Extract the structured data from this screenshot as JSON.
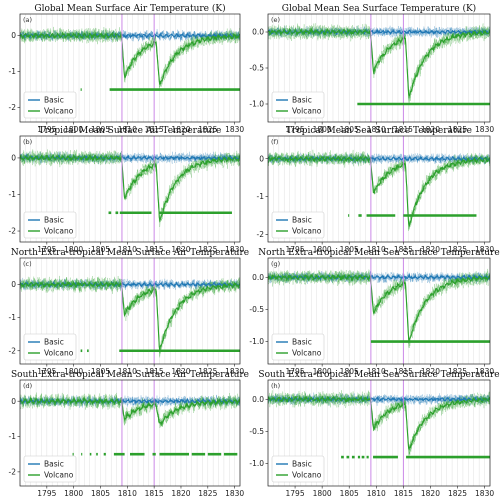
{
  "figure": {
    "colors": {
      "basic": "#1f77b4",
      "volcano": "#2ca02c",
      "vline": "#c77ee6",
      "grid": "#d9d9d9"
    },
    "eruption_years": [
      1809,
      1815
    ]
  },
  "chart_data": [
    {
      "id": "a",
      "panel_label": "(a)",
      "type": "line",
      "title": "Global Mean Surface Air Temperature (K)",
      "xlim": [
        1790,
        1831
      ],
      "ylim": [
        -2.4,
        0.6
      ],
      "yticks": [
        -2,
        -1,
        0
      ],
      "xticks": [
        1795,
        1800,
        1805,
        1810,
        1815,
        1820,
        1825,
        1830
      ],
      "legend": "bottom-left",
      "series": [
        {
          "name": "Basic",
          "color": "#1f77b4",
          "baseline": 0.0
        },
        {
          "name": "Volcano",
          "color": "#2ca02c",
          "dips": [
            {
              "year": 1809.5,
              "value": -1.15
            },
            {
              "year": 1816.0,
              "value": -1.25
            }
          ]
        }
      ],
      "significance": {
        "y": -1.5,
        "segments": [
          [
            1801.3,
            1801.5
          ],
          [
            1806.7,
            1831
          ]
        ]
      }
    },
    {
      "id": "e",
      "panel_label": "(e)",
      "type": "line",
      "title": "Global Mean Sea Surface Temperature (K)",
      "xlim": [
        1790,
        1831
      ],
      "ylim": [
        -1.25,
        0.25
      ],
      "yticks": [
        -1.0,
        -0.5,
        0.0
      ],
      "xticks": [
        1795,
        1800,
        1805,
        1810,
        1815,
        1820,
        1825,
        1830
      ],
      "legend": "bottom-left",
      "series": [
        {
          "name": "Basic",
          "color": "#1f77b4",
          "baseline": 0.0
        },
        {
          "name": "Volcano",
          "color": "#2ca02c",
          "dips": [
            {
              "year": 1809.5,
              "value": -0.55
            },
            {
              "year": 1816.0,
              "value": -0.85
            }
          ]
        }
      ],
      "significance": {
        "y": -1.0,
        "segments": [
          [
            1806.5,
            1831
          ]
        ]
      }
    },
    {
      "id": "b",
      "panel_label": "(b)",
      "type": "line",
      "title": "Tropical Mean Surface Air Temperature",
      "xlim": [
        1790,
        1831
      ],
      "ylim": [
        -2.3,
        0.6
      ],
      "yticks": [
        -2,
        -1,
        0
      ],
      "xticks": [
        1795,
        1800,
        1805,
        1810,
        1815,
        1820,
        1825,
        1830
      ],
      "legend": "bottom-left",
      "series": [
        {
          "name": "Basic",
          "color": "#1f77b4",
          "baseline": 0.0
        },
        {
          "name": "Volcano",
          "color": "#2ca02c",
          "dips": [
            {
              "year": 1809.5,
              "value": -1.1
            },
            {
              "year": 1816.0,
              "value": -1.6
            }
          ]
        }
      ],
      "significance": {
        "y": -1.5,
        "segments": [
          [
            1806.5,
            1807.0
          ],
          [
            1807.8,
            1808.3
          ],
          [
            1808.6,
            1814.5
          ],
          [
            1816.0,
            1829.5
          ]
        ]
      }
    },
    {
      "id": "f",
      "panel_label": "(f)",
      "type": "line",
      "title": "Tropical Mean Sea Surface Temperature",
      "xlim": [
        1790,
        1831
      ],
      "ylim": [
        -2.2,
        0.6
      ],
      "yticks": [
        -2,
        -1,
        0
      ],
      "xticks": [
        1795,
        1800,
        1805,
        1810,
        1815,
        1820,
        1825,
        1830
      ],
      "legend": "bottom-left",
      "series": [
        {
          "name": "Basic",
          "color": "#1f77b4",
          "baseline": 0.0
        },
        {
          "name": "Volcano",
          "color": "#2ca02c",
          "dips": [
            {
              "year": 1809.5,
              "value": -0.9
            },
            {
              "year": 1816.0,
              "value": -1.7
            }
          ]
        }
      ],
      "significance": {
        "y": -1.5,
        "segments": [
          [
            1804.8,
            1805.0
          ],
          [
            1806.7,
            1807.3
          ],
          [
            1808.2,
            1813.5
          ],
          [
            1815.0,
            1828.5
          ]
        ]
      }
    },
    {
      "id": "c",
      "panel_label": "(c)",
      "type": "line",
      "title": "North Extra-tropical Mean Surface Air Temperature",
      "xlim": [
        1790,
        1831
      ],
      "ylim": [
        -2.4,
        0.8
      ],
      "yticks": [
        -2,
        -1,
        0
      ],
      "xticks": [
        1795,
        1800,
        1805,
        1810,
        1815,
        1820,
        1825,
        1830
      ],
      "legend": "bottom-left",
      "series": [
        {
          "name": "Basic",
          "color": "#1f77b4",
          "baseline": 0.0
        },
        {
          "name": "Volcano",
          "color": "#2ca02c",
          "dips": [
            {
              "year": 1809.5,
              "value": -0.9
            },
            {
              "year": 1816.0,
              "value": -1.9
            }
          ]
        }
      ],
      "significance": {
        "y": -2.0,
        "segments": [
          [
            1801.3,
            1801.6
          ],
          [
            1802.5,
            1802.8
          ],
          [
            1808.5,
            1831
          ]
        ]
      }
    },
    {
      "id": "g",
      "panel_label": "(g)",
      "type": "line",
      "title": "North Extra-tropical Mean Sea Surface Temperature",
      "xlim": [
        1790,
        1831
      ],
      "ylim": [
        -1.35,
        0.3
      ],
      "yticks": [
        -1.0,
        -0.5,
        0.0
      ],
      "xticks": [
        1795,
        1800,
        1805,
        1810,
        1815,
        1820,
        1825,
        1830
      ],
      "legend": "bottom-left",
      "series": [
        {
          "name": "Basic",
          "color": "#1f77b4",
          "baseline": 0.0
        },
        {
          "name": "Volcano",
          "color": "#2ca02c",
          "dips": [
            {
              "year": 1809.5,
              "value": -0.55
            },
            {
              "year": 1816.0,
              "value": -0.95
            }
          ]
        }
      ],
      "significance": {
        "y": -1.0,
        "segments": [
          [
            1809.0,
            1831
          ]
        ]
      }
    },
    {
      "id": "d",
      "panel_label": "(d)",
      "type": "line",
      "title": "South Extra-tropical Mean Surface Air Temperature",
      "xlim": [
        1790,
        1831
      ],
      "ylim": [
        -2.4,
        0.6
      ],
      "yticks": [
        -2,
        -1,
        0
      ],
      "xticks": [
        1795,
        1800,
        1805,
        1810,
        1815,
        1820,
        1825,
        1830
      ],
      "legend": "bottom-left",
      "series": [
        {
          "name": "Basic",
          "color": "#1f77b4",
          "baseline": 0.0
        },
        {
          "name": "Volcano",
          "color": "#2ca02c",
          "dips": [
            {
              "year": 1809.5,
              "value": -0.5
            },
            {
              "year": 1816.0,
              "value": -0.6
            }
          ]
        }
      ],
      "significance": {
        "y": -1.5,
        "segments": [
          [
            1799.8,
            1800.0
          ],
          [
            1801.4,
            1801.6
          ],
          [
            1803.0,
            1803.3
          ],
          [
            1804.2,
            1804.5
          ],
          [
            1805.6,
            1806.0
          ],
          [
            1807.5,
            1809.5
          ],
          [
            1810.5,
            1813.2
          ],
          [
            1814.7,
            1815.3
          ],
          [
            1816.0,
            1821.5
          ],
          [
            1822.0,
            1824.5
          ],
          [
            1825.0,
            1827.5
          ],
          [
            1828.0,
            1830.5
          ]
        ]
      }
    },
    {
      "id": "h",
      "panel_label": "(h)",
      "type": "line",
      "title": "South Extra-tropical Mean Sea Surface Temperature",
      "xlim": [
        1790,
        1831
      ],
      "ylim": [
        -1.35,
        0.3
      ],
      "yticks": [
        -1.0,
        -0.5,
        0.0
      ],
      "xticks": [
        1795,
        1800,
        1805,
        1810,
        1815,
        1820,
        1825,
        1830
      ],
      "legend": "bottom-left",
      "series": [
        {
          "name": "Basic",
          "color": "#1f77b4",
          "baseline": 0.0
        },
        {
          "name": "Volcano",
          "color": "#2ca02c",
          "dips": [
            {
              "year": 1809.5,
              "value": -0.45
            },
            {
              "year": 1816.0,
              "value": -0.75
            }
          ]
        }
      ],
      "significance": {
        "y": -0.9,
        "segments": [
          [
            1803.5,
            1804.0
          ],
          [
            1804.5,
            1805.0
          ],
          [
            1805.5,
            1806.0
          ],
          [
            1806.6,
            1807.0
          ],
          [
            1807.3,
            1807.8
          ],
          [
            1808.2,
            1808.6
          ],
          [
            1809.4,
            1814.0
          ],
          [
            1815.5,
            1831
          ]
        ]
      }
    }
  ]
}
